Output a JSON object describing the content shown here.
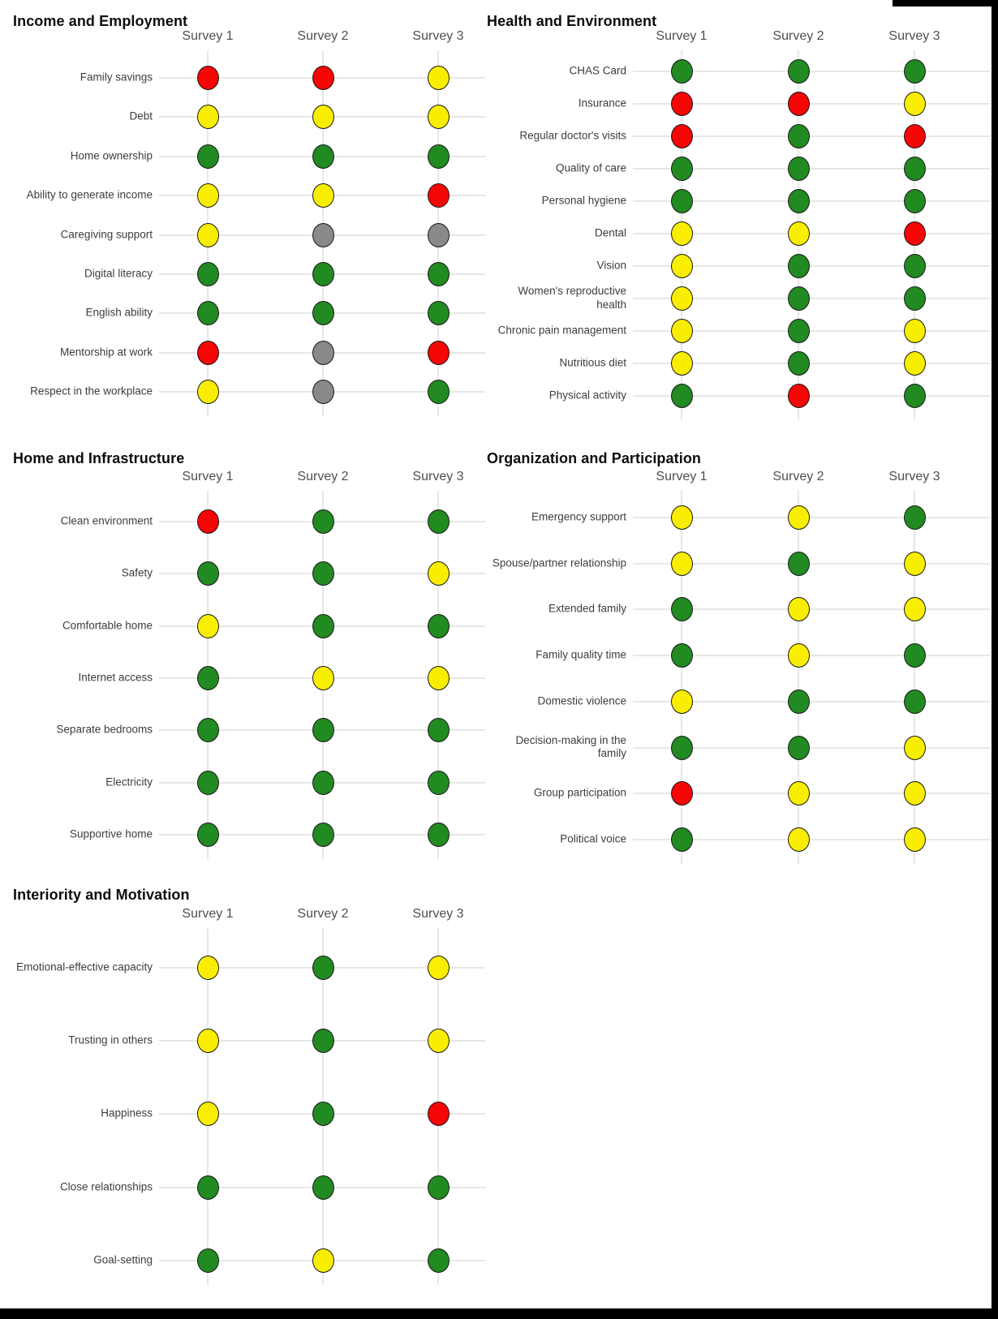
{
  "colors": {
    "green": "#218A21",
    "yellow": "#FAEE00",
    "red": "#F60505",
    "gray": "#898989",
    "gridline": "#E7E7E7",
    "dot_border": "#1A1A1A"
  },
  "chart_data": [
    {
      "type": "heatmap",
      "title": "Income and Employment",
      "columns": [
        "Survey 1",
        "Survey 2",
        "Survey 3"
      ],
      "rows": [
        {
          "label": "Family savings",
          "values": [
            "red",
            "red",
            "yellow"
          ]
        },
        {
          "label": "Debt",
          "values": [
            "yellow",
            "yellow",
            "yellow"
          ]
        },
        {
          "label": "Home ownership",
          "values": [
            "green",
            "green",
            "green"
          ]
        },
        {
          "label": "Ability to generate income",
          "values": [
            "yellow",
            "yellow",
            "red"
          ]
        },
        {
          "label": "Caregiving support",
          "values": [
            "yellow",
            "gray",
            "gray"
          ]
        },
        {
          "label": "Digital literacy",
          "values": [
            "green",
            "green",
            "green"
          ]
        },
        {
          "label": "English ability",
          "values": [
            "green",
            "green",
            "green"
          ]
        },
        {
          "label": "Mentorship at work",
          "values": [
            "red",
            "gray",
            "red"
          ]
        },
        {
          "label": "Respect in the workplace",
          "values": [
            "yellow",
            "gray",
            "green"
          ]
        }
      ]
    },
    {
      "type": "heatmap",
      "title": "Health and Environment",
      "columns": [
        "Survey 1",
        "Survey 2",
        "Survey 3"
      ],
      "rows": [
        {
          "label": "CHAS Card",
          "values": [
            "green",
            "green",
            "green"
          ]
        },
        {
          "label": "Insurance",
          "values": [
            "red",
            "red",
            "yellow"
          ]
        },
        {
          "label": "Regular doctor's visits",
          "values": [
            "red",
            "green",
            "red"
          ]
        },
        {
          "label": "Quality of care",
          "values": [
            "green",
            "green",
            "green"
          ]
        },
        {
          "label": "Personal hygiene",
          "values": [
            "green",
            "green",
            "green"
          ]
        },
        {
          "label": "Dental",
          "values": [
            "yellow",
            "yellow",
            "red"
          ]
        },
        {
          "label": "Vision",
          "values": [
            "yellow",
            "green",
            "green"
          ]
        },
        {
          "label": "Women's reproductive health",
          "values": [
            "yellow",
            "green",
            "green"
          ]
        },
        {
          "label": "Chronic pain management",
          "values": [
            "yellow",
            "green",
            "yellow"
          ]
        },
        {
          "label": "Nutritious diet",
          "values": [
            "yellow",
            "green",
            "yellow"
          ]
        },
        {
          "label": "Physical activity",
          "values": [
            "green",
            "red",
            "green"
          ]
        }
      ]
    },
    {
      "type": "heatmap",
      "title": "Home and Infrastructure",
      "columns": [
        "Survey 1",
        "Survey 2",
        "Survey 3"
      ],
      "rows": [
        {
          "label": "Clean environment",
          "values": [
            "red",
            "green",
            "green"
          ]
        },
        {
          "label": "Safety",
          "values": [
            "green",
            "green",
            "yellow"
          ]
        },
        {
          "label": "Comfortable home",
          "values": [
            "yellow",
            "green",
            "green"
          ]
        },
        {
          "label": "Internet access",
          "values": [
            "green",
            "yellow",
            "yellow"
          ]
        },
        {
          "label": "Separate bedrooms",
          "values": [
            "green",
            "green",
            "green"
          ]
        },
        {
          "label": "Electricity",
          "values": [
            "green",
            "green",
            "green"
          ]
        },
        {
          "label": "Supportive home",
          "values": [
            "green",
            "green",
            "green"
          ]
        }
      ]
    },
    {
      "type": "heatmap",
      "title": "Organization and Participation",
      "columns": [
        "Survey 1",
        "Survey 2",
        "Survey 3"
      ],
      "rows": [
        {
          "label": "Emergency support",
          "values": [
            "yellow",
            "yellow",
            "green"
          ]
        },
        {
          "label": "Spouse/partner relationship",
          "values": [
            "yellow",
            "green",
            "yellow"
          ]
        },
        {
          "label": "Extended family",
          "values": [
            "green",
            "yellow",
            "yellow"
          ]
        },
        {
          "label": "Family quality time",
          "values": [
            "green",
            "yellow",
            "green"
          ]
        },
        {
          "label": "Domestic violence",
          "values": [
            "yellow",
            "green",
            "green"
          ]
        },
        {
          "label": "Decision-making in the family",
          "values": [
            "green",
            "green",
            "yellow"
          ]
        },
        {
          "label": "Group participation",
          "values": [
            "red",
            "yellow",
            "yellow"
          ]
        },
        {
          "label": "Political voice",
          "values": [
            "green",
            "yellow",
            "yellow"
          ]
        }
      ]
    },
    {
      "type": "heatmap",
      "title": "Interiority and Motivation",
      "columns": [
        "Survey 1",
        "Survey 2",
        "Survey 3"
      ],
      "rows": [
        {
          "label": "Emotional-effective capacity",
          "values": [
            "yellow",
            "green",
            "yellow"
          ]
        },
        {
          "label": "Trusting in others",
          "values": [
            "yellow",
            "green",
            "yellow"
          ]
        },
        {
          "label": "Happiness",
          "values": [
            "yellow",
            "green",
            "red"
          ]
        },
        {
          "label": "Close relationships",
          "values": [
            "green",
            "green",
            "green"
          ]
        },
        {
          "label": "Goal-setting",
          "values": [
            "green",
            "yellow",
            "green"
          ]
        }
      ]
    }
  ]
}
